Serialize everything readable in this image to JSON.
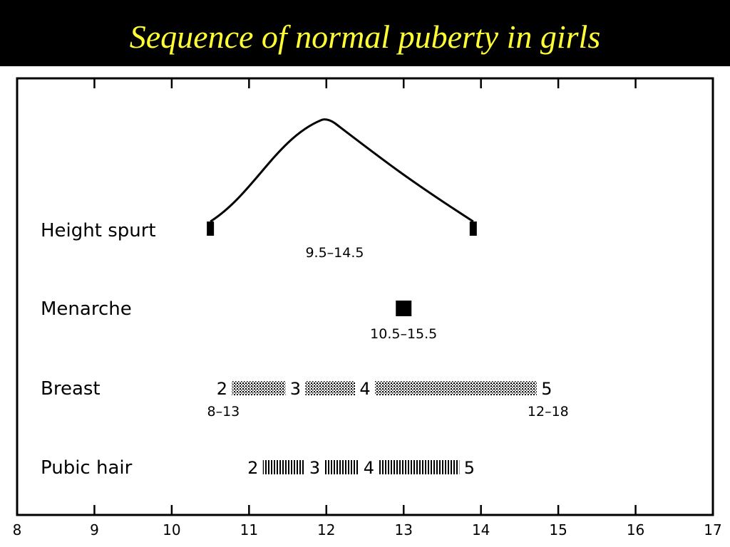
{
  "title": "Sequence of normal puberty in girls",
  "colors": {
    "title_bg": "#000000",
    "title_text": "#ffff33",
    "ink": "#000000"
  },
  "chart_data": {
    "type": "timeline",
    "xlim": [
      8,
      17
    ],
    "x_ticks": [
      8,
      9,
      10,
      11,
      12,
      13,
      14,
      15,
      16,
      17
    ],
    "grid": false,
    "rows": [
      {
        "label": "Height spurt",
        "start": 10.5,
        "peak": 12,
        "end": 13.9,
        "range": "9.5–14.5"
      },
      {
        "label": "Menarche",
        "at": 13,
        "range": "10.5–15.5"
      },
      {
        "label": "Breast",
        "style": "dotted",
        "stages": [
          {
            "label": "2",
            "at": 10.65
          },
          {
            "label": "3",
            "at": 11.6
          },
          {
            "label": "4",
            "at": 12.5
          },
          {
            "label": "5",
            "at": 14.85
          }
        ],
        "start_range": "8–13",
        "end_range": "12–18"
      },
      {
        "label": "Pubic hair",
        "style": "hatched",
        "stages": [
          {
            "label": "2",
            "at": 11.05
          },
          {
            "label": "3",
            "at": 11.85
          },
          {
            "label": "4",
            "at": 12.55
          },
          {
            "label": "5",
            "at": 13.85
          }
        ]
      }
    ]
  }
}
